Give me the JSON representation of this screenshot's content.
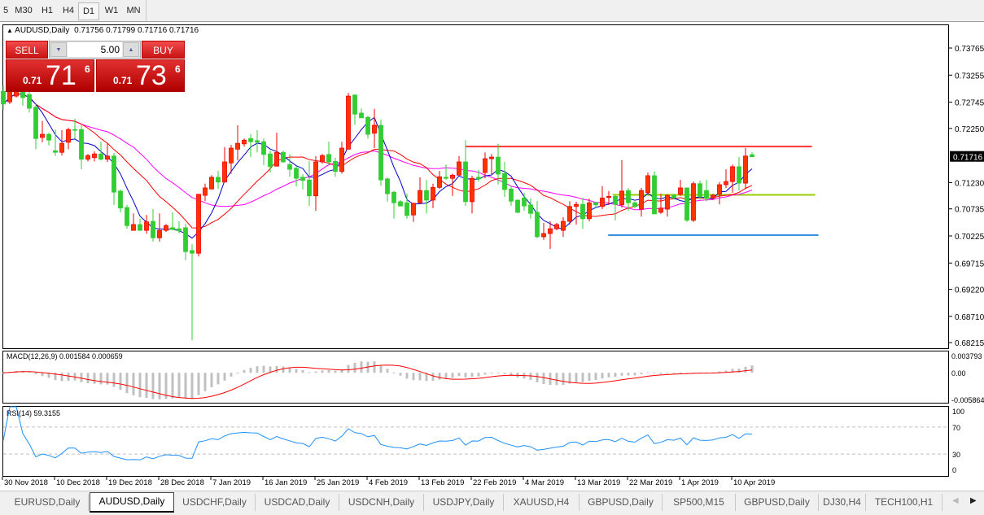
{
  "toolbar": {
    "timeframes": [
      {
        "label": "5"
      },
      {
        "label": "M30"
      },
      {
        "label": "H1"
      },
      {
        "label": "H4"
      },
      {
        "label": "D1",
        "active": true
      },
      {
        "label": "W1"
      },
      {
        "label": "MN"
      }
    ]
  },
  "chart": {
    "symbol_header": "AUDUSD,Daily",
    "ohlc_header": "0.71756 0.71799 0.71716 0.71716",
    "current_price_label": "0.71716",
    "colors": {
      "bull": "#ff3300",
      "bear": "#32cd32",
      "ma_fast": "#0000cc",
      "ma_mid": "#ff0000",
      "ma_slow": "#ff00ff",
      "macd_hist": "#c0c0c0",
      "macd_signal": "#ff0000",
      "rsi": "#1e90ff"
    }
  },
  "trade_panel": {
    "sell_label": "SELL",
    "buy_label": "BUY",
    "lot_value": "5.00",
    "sell_price": {
      "prefix": "0.71",
      "big": "71",
      "sup": "6"
    },
    "buy_price": {
      "prefix": "0.71",
      "big": "73",
      "sup": "6"
    }
  },
  "chart_data": {
    "type": "candlestick",
    "ylim": [
      0.6811,
      0.7421
    ],
    "price_ticks": [
      "0.73765",
      "0.73255",
      "0.72745",
      "0.72250",
      "0.71230",
      "0.70735",
      "0.70225",
      "0.69715",
      "0.69220",
      "0.68710",
      "0.68215"
    ],
    "x_ticks": [
      {
        "bar": 0,
        "label": "30 Nov 2018"
      },
      {
        "bar": 8,
        "label": "10 Dec 2018"
      },
      {
        "bar": 16,
        "label": "19 Dec 2018"
      },
      {
        "bar": 24,
        "label": "28 Dec 2018"
      },
      {
        "bar": 32,
        "label": "7 Jan 2019"
      },
      {
        "bar": 40,
        "label": "16 Jan 2019"
      },
      {
        "bar": 48,
        "label": "25 Jan 2019"
      },
      {
        "bar": 56,
        "label": "4 Feb 2019"
      },
      {
        "bar": 64,
        "label": "13 Feb 2019"
      },
      {
        "bar": 72,
        "label": "22 Feb 2019"
      },
      {
        "bar": 80,
        "label": "4 Mar 2019"
      },
      {
        "bar": 88,
        "label": "13 Mar 2019"
      },
      {
        "bar": 96,
        "label": "22 Mar 2019"
      },
      {
        "bar": 104,
        "label": "1 Apr 2019"
      },
      {
        "bar": 112,
        "label": "10 Apr 2019"
      }
    ],
    "ohlc": [
      [
        0.7295,
        0.7306,
        0.726,
        0.7271
      ],
      [
        0.7275,
        0.7301,
        0.7271,
        0.7295
      ],
      [
        0.7286,
        0.7314,
        0.7283,
        0.7306
      ],
      [
        0.7301,
        0.7311,
        0.7268,
        0.7283
      ],
      [
        0.7289,
        0.7295,
        0.7255,
        0.7263
      ],
      [
        0.7265,
        0.7272,
        0.7186,
        0.7206
      ],
      [
        0.7208,
        0.7239,
        0.7199,
        0.7214
      ],
      [
        0.7214,
        0.7217,
        0.7193,
        0.7203
      ],
      [
        0.7183,
        0.7223,
        0.7173,
        0.718
      ],
      [
        0.718,
        0.7222,
        0.7174,
        0.7197
      ],
      [
        0.7199,
        0.7226,
        0.7186,
        0.7223
      ],
      [
        0.7223,
        0.7243,
        0.7206,
        0.7222
      ],
      [
        0.7223,
        0.7231,
        0.7148,
        0.7167
      ],
      [
        0.7167,
        0.7177,
        0.7163,
        0.7174
      ],
      [
        0.717,
        0.7182,
        0.7163,
        0.7177
      ],
      [
        0.7177,
        0.72,
        0.7165,
        0.7167
      ],
      [
        0.7167,
        0.7197,
        0.7162,
        0.7173
      ],
      [
        0.7173,
        0.7179,
        0.7081,
        0.7105
      ],
      [
        0.7107,
        0.711,
        0.7067,
        0.7075
      ],
      [
        0.7076,
        0.7081,
        0.7036,
        0.7042
      ],
      [
        0.7033,
        0.7065,
        0.7033,
        0.7044
      ],
      [
        0.7044,
        0.7055,
        0.7032,
        0.7033
      ],
      [
        0.7033,
        0.7062,
        0.7027,
        0.7049
      ],
      [
        0.705,
        0.7073,
        0.7012,
        0.7019
      ],
      [
        0.7019,
        0.7065,
        0.7012,
        0.7033
      ],
      [
        0.7033,
        0.7045,
        0.703,
        0.7042
      ],
      [
        0.7038,
        0.7067,
        0.7033,
        0.7035
      ],
      [
        0.7036,
        0.705,
        0.7027,
        0.7032
      ],
      [
        0.7038,
        0.7045,
        0.6977,
        0.6993
      ],
      [
        0.6995,
        0.7007,
        0.6826,
        0.699
      ],
      [
        0.699,
        0.7101,
        0.6984,
        0.7101
      ],
      [
        0.7099,
        0.7121,
        0.7088,
        0.7113
      ],
      [
        0.7111,
        0.7137,
        0.711,
        0.7133
      ],
      [
        0.7133,
        0.7145,
        0.7111,
        0.7124
      ],
      [
        0.7124,
        0.719,
        0.7124,
        0.7162
      ],
      [
        0.716,
        0.7194,
        0.714,
        0.7188
      ],
      [
        0.7186,
        0.7231,
        0.7165,
        0.7197
      ],
      [
        0.7196,
        0.7206,
        0.7191,
        0.7203
      ],
      [
        0.7206,
        0.7214,
        0.7171,
        0.72
      ],
      [
        0.7202,
        0.7222,
        0.718,
        0.7199
      ],
      [
        0.72,
        0.7206,
        0.7156,
        0.7176
      ],
      [
        0.7177,
        0.7183,
        0.7142,
        0.7153
      ],
      [
        0.7154,
        0.7217,
        0.7154,
        0.718
      ],
      [
        0.718,
        0.7183,
        0.716,
        0.7162
      ],
      [
        0.7157,
        0.7177,
        0.7134,
        0.7148
      ],
      [
        0.715,
        0.7154,
        0.7116,
        0.7131
      ],
      [
        0.7133,
        0.7139,
        0.711,
        0.7127
      ],
      [
        0.7128,
        0.7163,
        0.7079,
        0.7098
      ],
      [
        0.7098,
        0.7173,
        0.707,
        0.7162
      ],
      [
        0.7162,
        0.7177,
        0.7159,
        0.7174
      ],
      [
        0.7176,
        0.72,
        0.7157,
        0.7162
      ],
      [
        0.7163,
        0.717,
        0.7134,
        0.7144
      ],
      [
        0.7144,
        0.72,
        0.714,
        0.7188
      ],
      [
        0.7186,
        0.7292,
        0.7186,
        0.7286
      ],
      [
        0.7288,
        0.7289,
        0.7232,
        0.7252
      ],
      [
        0.7254,
        0.7263,
        0.7245,
        0.7245
      ],
      [
        0.7246,
        0.7249,
        0.7206,
        0.7214
      ],
      [
        0.7216,
        0.7262,
        0.7188,
        0.7231
      ],
      [
        0.7231,
        0.7242,
        0.7117,
        0.7128
      ],
      [
        0.713,
        0.7133,
        0.7087,
        0.7102
      ],
      [
        0.7105,
        0.7107,
        0.7055,
        0.7085
      ],
      [
        0.7087,
        0.709,
        0.7078,
        0.7079
      ],
      [
        0.7085,
        0.7102,
        0.7055,
        0.7061
      ],
      [
        0.7062,
        0.7085,
        0.7049,
        0.7084
      ],
      [
        0.7085,
        0.7133,
        0.7082,
        0.7108
      ],
      [
        0.7108,
        0.7128,
        0.7065,
        0.709
      ],
      [
        0.709,
        0.7121,
        0.7075,
        0.7114
      ],
      [
        0.7114,
        0.7145,
        0.7111,
        0.7134
      ],
      [
        0.7133,
        0.7157,
        0.7128,
        0.7131
      ],
      [
        0.7131,
        0.714,
        0.7098,
        0.7137
      ],
      [
        0.7137,
        0.7173,
        0.7137,
        0.7162
      ],
      [
        0.7162,
        0.7203,
        0.7079,
        0.7087
      ],
      [
        0.7087,
        0.7136,
        0.7065,
        0.7131
      ],
      [
        0.7133,
        0.7147,
        0.7125,
        0.713
      ],
      [
        0.7142,
        0.718,
        0.7131,
        0.7168
      ],
      [
        0.7168,
        0.7177,
        0.7139,
        0.7171
      ],
      [
        0.7171,
        0.7196,
        0.7119,
        0.7139
      ],
      [
        0.714,
        0.7162,
        0.7096,
        0.711
      ],
      [
        0.7111,
        0.7117,
        0.7079,
        0.7088
      ],
      [
        0.709,
        0.7091,
        0.7065,
        0.7067
      ],
      [
        0.7094,
        0.7104,
        0.707,
        0.7079
      ],
      [
        0.7081,
        0.7093,
        0.7055,
        0.7065
      ],
      [
        0.7067,
        0.7088,
        0.7018,
        0.7021
      ],
      [
        0.7021,
        0.7047,
        0.7015,
        0.7027
      ],
      [
        0.7027,
        0.705,
        0.6998,
        0.7036
      ],
      [
        0.7036,
        0.7047,
        0.7033,
        0.7044
      ],
      [
        0.7033,
        0.7058,
        0.7021,
        0.705
      ],
      [
        0.705,
        0.7088,
        0.7044,
        0.7078
      ],
      [
        0.7078,
        0.7087,
        0.7044,
        0.7082
      ],
      [
        0.7082,
        0.7094,
        0.7036,
        0.7055
      ],
      [
        0.7055,
        0.7093,
        0.705,
        0.7085
      ],
      [
        0.7085,
        0.7087,
        0.7075,
        0.7081
      ],
      [
        0.7078,
        0.7116,
        0.7073,
        0.7094
      ],
      [
        0.7095,
        0.7107,
        0.7081,
        0.7097
      ],
      [
        0.7097,
        0.71,
        0.7052,
        0.7082
      ],
      [
        0.7081,
        0.7165,
        0.7076,
        0.7107
      ],
      [
        0.7108,
        0.7113,
        0.707,
        0.7085
      ],
      [
        0.7085,
        0.7088,
        0.7075,
        0.7078
      ],
      [
        0.7073,
        0.7113,
        0.7059,
        0.7108
      ],
      [
        0.7104,
        0.7142,
        0.7101,
        0.7136
      ],
      [
        0.7136,
        0.7144,
        0.7064,
        0.7064
      ],
      [
        0.7067,
        0.7102,
        0.7064,
        0.7075
      ],
      [
        0.7073,
        0.7101,
        0.7059,
        0.7099
      ],
      [
        0.7099,
        0.7102,
        0.7091,
        0.7094
      ],
      [
        0.7101,
        0.7128,
        0.7098,
        0.7113
      ],
      [
        0.7113,
        0.7113,
        0.7049,
        0.7052
      ],
      [
        0.7052,
        0.7125,
        0.7049,
        0.7121
      ],
      [
        0.7121,
        0.7127,
        0.7091,
        0.7096
      ],
      [
        0.7108,
        0.7128,
        0.7088,
        0.7093
      ],
      [
        0.7094,
        0.7102,
        0.7091,
        0.7099
      ],
      [
        0.7101,
        0.7124,
        0.7082,
        0.7119
      ],
      [
        0.7119,
        0.7148,
        0.7113,
        0.7125
      ],
      [
        0.7125,
        0.7157,
        0.7104,
        0.7153
      ],
      [
        0.7153,
        0.7171,
        0.7108,
        0.7122
      ],
      [
        0.7122,
        0.7188,
        0.7111,
        0.7173
      ],
      [
        0.71756,
        0.71799,
        0.71716,
        0.71716
      ]
    ],
    "horizontal_lines": [
      {
        "price": 0.7191,
        "from_bar": 71,
        "to_bar": 124.2,
        "color": "#ff3333"
      },
      {
        "price": 0.71,
        "from_bar": 93.6,
        "to_bar": 124.7,
        "color": "#99cc00"
      },
      {
        "price": 0.7024,
        "from_bar": 92.9,
        "to_bar": 125.2,
        "color": "#3b8fe0"
      }
    ]
  },
  "macd": {
    "label": "MACD(12,26,9) 0.001584 0.000659",
    "ylim": [
      -0.005864,
      0.003793
    ],
    "tick_labels": [
      "0.003793",
      "0.00",
      "-0.005864"
    ]
  },
  "rsi": {
    "label": "RSI(14) 59.3155",
    "levels": [
      70,
      30
    ],
    "tick_labels": [
      "100",
      "70",
      "30",
      "0"
    ]
  },
  "tabs": [
    {
      "label": "EURUSD,Daily"
    },
    {
      "label": "AUDUSD,Daily",
      "active": true
    },
    {
      "label": "USDCHF,Daily"
    },
    {
      "label": "USDCAD,Daily"
    },
    {
      "label": "USDCNH,Daily"
    },
    {
      "label": "USDJPY,Daily"
    },
    {
      "label": "XAUUSD,H4"
    },
    {
      "label": "GBPUSD,Daily"
    },
    {
      "label": "SP500,M15"
    },
    {
      "label": "GBPUSD,Daily"
    },
    {
      "label": "DJ30,H4"
    },
    {
      "label": "TECH100,H1"
    }
  ],
  "tab_arrows": {
    "left": "◀",
    "right": "▶"
  }
}
